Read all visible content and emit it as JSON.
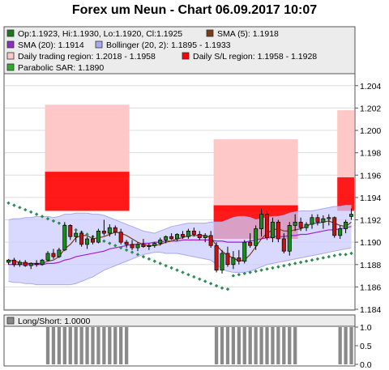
{
  "title": "Forex um Neun - Chart 06.09.2017 10:07",
  "legend": [
    {
      "label": "Op:1.1923, Hi:1.1930, Lo:1.1920, Cl:1.1925",
      "color": "#1a7a1a"
    },
    {
      "label": "SMA (5): 1.1918",
      "color": "#7a3b1a"
    },
    {
      "label": "SMA (20): 1.1914",
      "color": "#8a2fc0"
    },
    {
      "label": "Bollinger (20, 2): 1.1895 - 1.1933",
      "color": "#a9a9f0"
    },
    {
      "label": "Daily trading region: 1.2018 - 1.1958",
      "color": "#ffc8c8"
    },
    {
      "label": "Daily S/L region: 1.1958 - 1.1928",
      "color": "#ff0000"
    },
    {
      "label": "Parabolic SAR: 1.1890",
      "color": "#2faa2f"
    }
  ],
  "lower_legend": {
    "label": "Long/Short: 1.0000",
    "color": "#888888"
  },
  "colors": {
    "up": "#1a8a1a",
    "down": "#cc1010",
    "sma5": "#7a3b1a",
    "sma20": "#a020d0",
    "band_fill": "#ccccff",
    "band_line": "#a9a9f0",
    "region_light": "#ffc8c8",
    "region_dark": "#ff0000",
    "sar": "#2e8b57",
    "ls_bar": "#8a8a8a"
  },
  "chart_data": {
    "type": "candlestick",
    "ylim": [
      1.184,
      1.205
    ],
    "y_ticks": [
      "1.204",
      "1.202",
      "1.200",
      "1.198",
      "1.196",
      "1.194",
      "1.192",
      "1.190",
      "1.188",
      "1.186",
      "1.184"
    ],
    "y_tick_values": [
      1.204,
      1.202,
      1.2,
      1.198,
      1.196,
      1.194,
      1.192,
      1.19,
      1.188,
      1.186,
      1.184
    ],
    "candle_count": 62,
    "candles": [
      [
        1.1882,
        1.1885,
        1.188,
        1.1884
      ],
      [
        1.1884,
        1.1886,
        1.1878,
        1.188
      ],
      [
        1.188,
        1.1884,
        1.1878,
        1.1882
      ],
      [
        1.1882,
        1.1884,
        1.1878,
        1.1879
      ],
      [
        1.1879,
        1.1882,
        1.1876,
        1.1881
      ],
      [
        1.1881,
        1.1884,
        1.1878,
        1.188
      ],
      [
        1.188,
        1.1885,
        1.1879,
        1.1884
      ],
      [
        1.1884,
        1.1892,
        1.1883,
        1.189
      ],
      [
        1.189,
        1.1894,
        1.1885,
        1.1887
      ],
      [
        1.1887,
        1.1895,
        1.1886,
        1.1893
      ],
      [
        1.1893,
        1.1918,
        1.1892,
        1.1915
      ],
      [
        1.1915,
        1.1916,
        1.1902,
        1.1905
      ],
      [
        1.1905,
        1.191,
        1.19,
        1.1908
      ],
      [
        1.1908,
        1.191,
        1.1896,
        1.1898
      ],
      [
        1.1898,
        1.1905,
        1.1894,
        1.1903
      ],
      [
        1.1903,
        1.1906,
        1.1898,
        1.19
      ],
      [
        1.19,
        1.1912,
        1.1899,
        1.191
      ],
      [
        1.191,
        1.192,
        1.1906,
        1.1908
      ],
      [
        1.1908,
        1.1916,
        1.1905,
        1.1913
      ],
      [
        1.1913,
        1.1915,
        1.1906,
        1.1909
      ],
      [
        1.1909,
        1.1912,
        1.1898,
        1.19
      ],
      [
        1.19,
        1.1902,
        1.1895,
        1.1898
      ],
      [
        1.1898,
        1.1902,
        1.1893,
        1.1895
      ],
      [
        1.1895,
        1.19,
        1.1892,
        1.1898
      ],
      [
        1.1898,
        1.1903,
        1.1895,
        1.1896
      ],
      [
        1.1896,
        1.1899,
        1.1893,
        1.1897
      ],
      [
        1.1897,
        1.19,
        1.1895,
        1.1899
      ],
      [
        1.1899,
        1.1904,
        1.1897,
        1.1902
      ],
      [
        1.1902,
        1.1906,
        1.1899,
        1.1905
      ],
      [
        1.1905,
        1.1908,
        1.1902,
        1.1903
      ],
      [
        1.1903,
        1.1908,
        1.1901,
        1.1907
      ],
      [
        1.1907,
        1.191,
        1.1903,
        1.1905
      ],
      [
        1.1905,
        1.1912,
        1.1903,
        1.191
      ],
      [
        1.191,
        1.1913,
        1.1905,
        1.1907
      ],
      [
        1.1907,
        1.191,
        1.1902,
        1.1904
      ],
      [
        1.1904,
        1.1908,
        1.19,
        1.1906
      ],
      [
        1.1906,
        1.191,
        1.1895,
        1.1897
      ],
      [
        1.1897,
        1.19,
        1.1873,
        1.1875
      ],
      [
        1.1875,
        1.1893,
        1.1872,
        1.189
      ],
      [
        1.189,
        1.1896,
        1.1878,
        1.188
      ],
      [
        1.188,
        1.1892,
        1.1876,
        1.1886
      ],
      [
        1.1886,
        1.1893,
        1.188,
        1.1883
      ],
      [
        1.1883,
        1.1902,
        1.1881,
        1.19
      ],
      [
        1.19,
        1.1908,
        1.1895,
        1.1897
      ],
      [
        1.1897,
        1.1915,
        1.1893,
        1.1912
      ],
      [
        1.1912,
        1.193,
        1.1905,
        1.1925
      ],
      [
        1.1925,
        1.1928,
        1.1902,
        1.1904
      ],
      [
        1.1904,
        1.1922,
        1.19,
        1.1918
      ],
      [
        1.1918,
        1.192,
        1.19,
        1.1903
      ],
      [
        1.1903,
        1.1908,
        1.189,
        1.1892
      ],
      [
        1.1892,
        1.1918,
        1.1888,
        1.1915
      ],
      [
        1.1915,
        1.1925,
        1.191,
        1.1918
      ],
      [
        1.1918,
        1.1922,
        1.191,
        1.1913
      ],
      [
        1.1913,
        1.1918,
        1.191,
        1.1916
      ],
      [
        1.1916,
        1.1925,
        1.1912,
        1.1922
      ],
      [
        1.1922,
        1.1925,
        1.1915,
        1.1918
      ],
      [
        1.1918,
        1.1924,
        1.1912,
        1.1921
      ],
      [
        1.1921,
        1.1925,
        1.1915,
        1.1922
      ],
      [
        1.1922,
        1.1923,
        1.1904,
        1.1906
      ],
      [
        1.1906,
        1.1915,
        1.1903,
        1.1912
      ],
      [
        1.1912,
        1.192,
        1.1908,
        1.1918
      ],
      [
        1.1923,
        1.193,
        1.192,
        1.1925
      ]
    ],
    "sma5": [
      1.1884,
      1.1883,
      1.1882,
      1.1881,
      1.1881,
      1.1881,
      1.1881,
      1.1883,
      1.1884,
      1.1887,
      1.1894,
      1.1898,
      1.1904,
      1.1906,
      1.1906,
      1.1903,
      1.1904,
      1.1905,
      1.1907,
      1.1909,
      1.1908,
      1.1906,
      1.1903,
      1.19,
      1.1898,
      1.1897,
      1.1897,
      1.1898,
      1.19,
      1.1901,
      1.1903,
      1.1904,
      1.1906,
      1.1906,
      1.1906,
      1.1906,
      1.1904,
      1.1897,
      1.1892,
      1.1888,
      1.1886,
      1.1883,
      1.1884,
      1.1889,
      1.1896,
      1.1903,
      1.1908,
      1.1911,
      1.1912,
      1.191,
      1.191,
      1.1911,
      1.1912,
      1.1914,
      1.1917,
      1.1917,
      1.1918,
      1.1919,
      1.1917,
      1.1915,
      1.1914,
      1.1918
    ],
    "sma20": [
      1.188,
      1.188,
      1.188,
      1.188,
      1.188,
      1.188,
      1.188,
      1.1881,
      1.1881,
      1.1882,
      1.1884,
      1.1885,
      1.1887,
      1.1888,
      1.1889,
      1.189,
      1.1891,
      1.1892,
      1.1894,
      1.1895,
      1.1896,
      1.1897,
      1.1898,
      1.1898,
      1.1899,
      1.1899,
      1.19,
      1.19,
      1.1901,
      1.1901,
      1.1901,
      1.1902,
      1.1902,
      1.1902,
      1.1902,
      1.1902,
      1.1902,
      1.1901,
      1.1901,
      1.19,
      1.19,
      1.19,
      1.19,
      1.1901,
      1.1902,
      1.1903,
      1.1904,
      1.1905,
      1.1905,
      1.1905,
      1.1906,
      1.1906,
      1.1907,
      1.1907,
      1.1908,
      1.1909,
      1.191,
      1.1911,
      1.1911,
      1.1912,
      1.1913,
      1.1914
    ],
    "boll_upper": [
      1.192,
      1.1921,
      1.1921,
      1.1922,
      1.1922,
      1.1923,
      1.1923,
      1.1923,
      1.1922,
      1.1923,
      1.1925,
      1.1925,
      1.1926,
      1.1926,
      1.1926,
      1.1925,
      1.1925,
      1.1924,
      1.1922,
      1.192,
      1.1918,
      1.1916,
      1.1914,
      1.1912,
      1.191,
      1.1909,
      1.1908,
      1.191,
      1.1912,
      1.1914,
      1.1915,
      1.1916,
      1.1917,
      1.1917,
      1.1917,
      1.1917,
      1.1918,
      1.1918,
      1.1918,
      1.192,
      1.1922,
      1.1923,
      1.1923,
      1.1922,
      1.192,
      1.1921,
      1.1922,
      1.1923,
      1.1923,
      1.1924,
      1.1926,
      1.1927,
      1.1928,
      1.1928,
      1.1928,
      1.1929,
      1.193,
      1.1931,
      1.1932,
      1.1932,
      1.1933,
      1.1933
    ],
    "boll_lower": [
      1.1865,
      1.1864,
      1.1864,
      1.1863,
      1.1863,
      1.1862,
      1.1862,
      1.1862,
      1.1862,
      1.1862,
      1.1862,
      1.1862,
      1.1863,
      1.1865,
      1.1867,
      1.1869,
      1.1872,
      1.1875,
      1.1877,
      1.1879,
      1.1881,
      1.1883,
      1.1885,
      1.1887,
      1.1889,
      1.189,
      1.1891,
      1.1891,
      1.189,
      1.189,
      1.189,
      1.1889,
      1.1888,
      1.1887,
      1.1886,
      1.1885,
      1.1884,
      1.188,
      1.1876,
      1.1874,
      1.1873,
      1.1873,
      1.1873,
      1.1874,
      1.1876,
      1.1878,
      1.188,
      1.1881,
      1.1882,
      1.1883,
      1.1884,
      1.1885,
      1.1886,
      1.1887,
      1.1888,
      1.1889,
      1.189,
      1.1891,
      1.1892,
      1.1893,
      1.1894,
      1.1895
    ],
    "sar": [
      1.1935,
      1.1933,
      1.1931,
      1.1929,
      1.1927,
      1.1925,
      1.1923,
      1.1921,
      1.1919,
      1.1917,
      1.1915,
      1.1913,
      1.1911,
      1.1909,
      1.1907,
      1.1905,
      1.1903,
      1.1901,
      1.1899,
      1.1897,
      1.1895,
      1.1893,
      1.1891,
      1.1889,
      1.1887,
      1.1885,
      1.1883,
      1.1881,
      1.1879,
      1.1877,
      1.1875,
      1.1873,
      1.1871,
      1.1869,
      1.1867,
      1.1865,
      1.1863,
      1.1861,
      1.1859,
      1.1858,
      1.187,
      1.1871,
      1.1872,
      1.1873,
      1.1874,
      1.1875,
      1.1876,
      1.1877,
      1.1878,
      1.1879,
      1.188,
      1.1881,
      1.1882,
      1.1883,
      1.1884,
      1.1885,
      1.1886,
      1.1887,
      1.1888,
      1.1889,
      1.1889,
      1.189
    ],
    "regions": [
      {
        "x_start": 7,
        "x_end": 21,
        "light": [
          1.1958,
          1.2023
        ],
        "dark": [
          1.1928,
          1.1963
        ]
      },
      {
        "x_start": 37,
        "x_end": 51,
        "light": [
          1.1928,
          1.1992
        ],
        "dark": [
          1.1903,
          1.1933
        ]
      },
      {
        "x_start": 59,
        "x_end": 61,
        "light": [
          1.1958,
          1.2018
        ],
        "dark": [
          1.1928,
          1.1958
        ]
      }
    ],
    "long_short": {
      "ylim": [
        0.0,
        1.0
      ],
      "y_ticks": [
        "1.0",
        "0.5",
        "0.0"
      ],
      "y_tick_values": [
        1.0,
        0.5,
        0.0
      ],
      "values": [
        0,
        0,
        0,
        0,
        0,
        0,
        0,
        1,
        1,
        1,
        1,
        1,
        1,
        1,
        1,
        1,
        1,
        1,
        1,
        1,
        1,
        1,
        0,
        0,
        0,
        0,
        0,
        0,
        0,
        0,
        0,
        0,
        0,
        0,
        0,
        0,
        0,
        1,
        1,
        1,
        1,
        1,
        1,
        1,
        1,
        1,
        1,
        1,
        1,
        1,
        1,
        1,
        0,
        0,
        0,
        0,
        0,
        0,
        0,
        1,
        1,
        1
      ]
    }
  }
}
